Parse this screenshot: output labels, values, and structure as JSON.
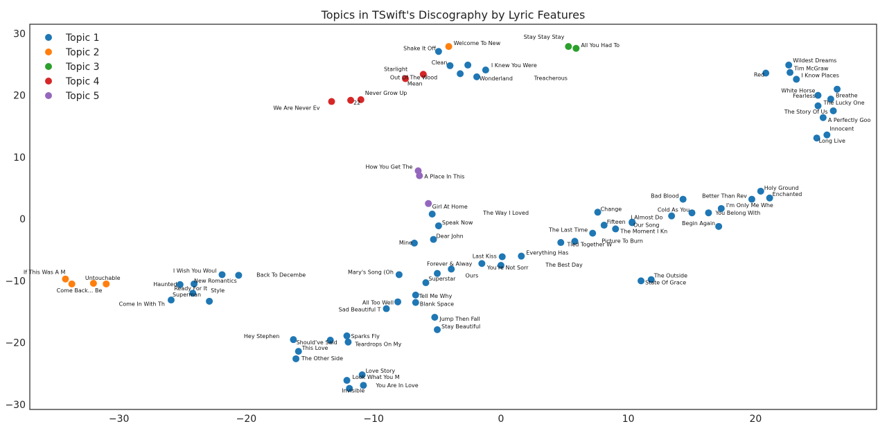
{
  "chart_data": {
    "type": "scatter",
    "title": "Topics in TSwift's Discography by Lyric Features",
    "xlim": [
      -37,
      29.5
    ],
    "ylim": [
      -30.8,
      31.5
    ],
    "xticks": [
      -30,
      -20,
      -10,
      0,
      10,
      20
    ],
    "yticks": [
      -30,
      -20,
      -10,
      0,
      10,
      20,
      30
    ],
    "xtick_labels": [
      "−30",
      "−20",
      "−10",
      "0",
      "10",
      "20"
    ],
    "ytick_labels": [
      "−30",
      "−20",
      "−10",
      "0",
      "10",
      "20",
      "30"
    ],
    "grid": false,
    "legend": "top-left",
    "series": [
      {
        "name": "Topic 1",
        "color": "#1f77b4"
      },
      {
        "name": "Topic 2",
        "color": "#ff7f0e"
      },
      {
        "name": "Topic 3",
        "color": "#2ca02c"
      },
      {
        "name": "Topic 4",
        "color": "#d62728"
      },
      {
        "name": "Topic 5",
        "color": "#9467bd"
      }
    ],
    "points": [
      {
        "label": "Shake It Off",
        "x": -4.9,
        "y": 27.1,
        "topic": 0,
        "anchor": "end",
        "dx": -4,
        "dy": -2
      },
      {
        "label": "Clean",
        "x": -4.0,
        "y": 24.8,
        "topic": 0,
        "anchor": "end",
        "dx": -4,
        "dy": -2
      },
      {
        "label": "",
        "x": -3.2,
        "y": 23.5,
        "topic": 0
      },
      {
        "label": "",
        "x": -2.6,
        "y": 24.9,
        "topic": 0
      },
      {
        "label": "I Knew You Were",
        "x": -1.2,
        "y": 24.1,
        "topic": 0,
        "anchor": "start",
        "dx": 8,
        "dy": -4
      },
      {
        "label": "Wonderland",
        "x": -1.9,
        "y": 23.0,
        "topic": 0,
        "anchor": "start",
        "dx": 4,
        "dy": 5
      },
      {
        "label": "Treacherous",
        "x": 2.6,
        "y": 22.8,
        "topic": 0,
        "textonly": true,
        "anchor": "start"
      },
      {
        "label": "Red",
        "x": 20.8,
        "y": 23.6,
        "topic": 0,
        "anchor": "end",
        "dx": -2,
        "dy": 5
      },
      {
        "label": "Wildest Dreams",
        "x": 22.6,
        "y": 24.9,
        "topic": 0,
        "anchor": "start",
        "dx": 6,
        "dy": -4
      },
      {
        "label": "Tim McGraw",
        "x": 22.7,
        "y": 23.7,
        "topic": 0,
        "anchor": "start",
        "dx": 6,
        "dy": -3
      },
      {
        "label": "I Know Places",
        "x": 23.2,
        "y": 22.6,
        "topic": 0,
        "anchor": "start",
        "dx": 7,
        "dy": -3
      },
      {
        "label": "White Horse",
        "x": 24.9,
        "y": 20.0,
        "topic": 0,
        "anchor": "end",
        "dx": -4,
        "dy": -4
      },
      {
        "label": "Breathe",
        "x": 26.4,
        "y": 21.0,
        "topic": 0,
        "anchor": "start",
        "dx": -2,
        "dy": 12
      },
      {
        "label": "Fearless",
        "x": 25.9,
        "y": 19.4,
        "topic": 0,
        "anchor": "end",
        "dx": -22,
        "dy": -2
      },
      {
        "label": "The Lucky One",
        "x": 24.9,
        "y": 18.3,
        "topic": 0,
        "anchor": "start",
        "dx": 8,
        "dy": -2
      },
      {
        "label": "The Story Of Us",
        "x": 26.1,
        "y": 17.5,
        "topic": 0,
        "anchor": "end",
        "dx": -8,
        "dy": 4
      },
      {
        "label": "A Perfectly Goo",
        "x": 25.3,
        "y": 16.4,
        "topic": 0,
        "anchor": "start",
        "dx": 7,
        "dy": 6
      },
      {
        "label": "Innocent",
        "x": 25.6,
        "y": 13.6,
        "topic": 0,
        "anchor": "start",
        "dx": 4,
        "dy": -6
      },
      {
        "label": "Long Live",
        "x": 24.8,
        "y": 13.1,
        "topic": 0,
        "anchor": "start",
        "dx": 3,
        "dy": 7
      },
      {
        "label": "Bad Blood",
        "x": 14.3,
        "y": 3.2,
        "topic": 0,
        "anchor": "end",
        "dx": -6,
        "dy": -2
      },
      {
        "label": "Holy Ground",
        "x": 20.4,
        "y": 4.5,
        "topic": 0,
        "anchor": "start",
        "dx": 5,
        "dy": -2
      },
      {
        "label": "Better Than Rev",
        "x": 19.7,
        "y": 3.2,
        "topic": 0,
        "anchor": "end",
        "dx": -7,
        "dy": -2
      },
      {
        "label": "Enchanted",
        "x": 21.1,
        "y": 3.4,
        "topic": 0,
        "anchor": "start",
        "dx": 4,
        "dy": -3
      },
      {
        "label": "I'm Only Me Whe",
        "x": 17.3,
        "y": 1.7,
        "topic": 0,
        "anchor": "start",
        "dx": 7,
        "dy": -2
      },
      {
        "label": "Cold As You",
        "x": 13.4,
        "y": 0.5,
        "topic": 0,
        "anchor": "end",
        "dx": 26,
        "dy": -6
      },
      {
        "label": "",
        "x": 15.0,
        "y": 1.0,
        "topic": 0
      },
      {
        "label": "You Belong With",
        "x": 16.3,
        "y": 1.0,
        "topic": 0,
        "anchor": "start",
        "dx": 10,
        "dy": 3
      },
      {
        "label": "Begin Again",
        "x": 17.1,
        "y": -1.2,
        "topic": 0,
        "anchor": "end",
        "dx": -5,
        "dy": -2
      },
      {
        "label": "Change",
        "x": 7.6,
        "y": 1.1,
        "topic": 0,
        "anchor": "start",
        "dx": 4,
        "dy": -2
      },
      {
        "label": "I Almost Do",
        "x": 10.3,
        "y": -0.5,
        "topic": 0,
        "anchor": "start",
        "dx": -2,
        "dy": -4
      },
      {
        "label": "Fifteen",
        "x": 8.1,
        "y": -1.0,
        "topic": 0,
        "anchor": "start",
        "dx": 4,
        "dy": -2
      },
      {
        "label": "Our Song",
        "x": 10.3,
        "y": -0.6,
        "topic": 0,
        "anchor": "start",
        "dx": 2,
        "dy": 6
      },
      {
        "label": "The Moment I Kn",
        "x": 9.0,
        "y": -1.6,
        "topic": 0,
        "anchor": "start",
        "dx": 7,
        "dy": 6
      },
      {
        "label": "The Last Time",
        "x": 7.2,
        "y": -2.3,
        "topic": 0,
        "anchor": "end",
        "dx": -7,
        "dy": -2
      },
      {
        "label": "Picture To Burn",
        "x": 7.2,
        "y": -2.3,
        "topic": 0,
        "textonly": true,
        "anchor": "start",
        "dx": 13,
        "dy": 14
      },
      {
        "label": "Tied Together W",
        "x": 5.8,
        "y": -3.6,
        "topic": 0,
        "anchor": "start",
        "dx": -11,
        "dy": 7
      },
      {
        "label": "",
        "x": 4.7,
        "y": -3.8,
        "topic": 0
      },
      {
        "label": "Everything Has",
        "x": 1.6,
        "y": -6.0,
        "topic": 0,
        "anchor": "start",
        "dx": 7,
        "dy": -2
      },
      {
        "label": "The Best Day",
        "x": 3.5,
        "y": -7.4,
        "topic": 0,
        "textonly": true,
        "anchor": "start"
      },
      {
        "label": "Last Kiss",
        "x": 0.1,
        "y": -6.1,
        "topic": 0,
        "anchor": "end",
        "dx": -8,
        "dy": 2
      },
      {
        "label": "You're Not Sorr",
        "x": 0.0,
        "y": -7.5,
        "topic": 0,
        "anchor": "start",
        "dx": -20,
        "dy": 6
      },
      {
        "label": "",
        "x": -1.5,
        "y": -7.2,
        "topic": 0
      },
      {
        "label": "The Way I Loved",
        "x": -1.4,
        "y": 1.0,
        "topic": 0,
        "textonly": true,
        "anchor": "start"
      },
      {
        "label": "Girl At Home",
        "x": -5.4,
        "y": 0.8,
        "topic": 0,
        "anchor": "start",
        "dx": 0,
        "dy": -8
      },
      {
        "label": "Speak Now",
        "x": -4.9,
        "y": -1.1,
        "topic": 0,
        "anchor": "start",
        "dx": 5,
        "dy": -2
      },
      {
        "label": "Dear John",
        "x": -5.3,
        "y": -3.3,
        "topic": 0,
        "anchor": "start",
        "dx": 4,
        "dy": -2
      },
      {
        "label": "Mine",
        "x": -6.8,
        "y": -3.9,
        "topic": 0,
        "anchor": "end",
        "dx": -3,
        "dy": 2
      },
      {
        "label": "Forever & Alway",
        "x": -5.0,
        "y": -8.8,
        "topic": 0,
        "anchor": "start",
        "dx": -15,
        "dy": -11
      },
      {
        "label": "",
        "x": -3.9,
        "y": -8.1,
        "topic": 0
      },
      {
        "label": "Ours",
        "x": -2.8,
        "y": -9.1,
        "topic": 0,
        "textonly": true,
        "anchor": "start"
      },
      {
        "label": "Mary's Song (Oh",
        "x": -8.0,
        "y": -9.0,
        "topic": 0,
        "anchor": "end",
        "dx": -8,
        "dy": -1
      },
      {
        "label": "Superstar",
        "x": -5.9,
        "y": -10.3,
        "topic": 0,
        "anchor": "start",
        "dx": 4,
        "dy": -3
      },
      {
        "label": "Tell Me Why",
        "x": -6.7,
        "y": -12.3,
        "topic": 0,
        "anchor": "start",
        "dx": 5,
        "dy": 4
      },
      {
        "label": "All Too Well",
        "x": -8.1,
        "y": -13.4,
        "topic": 0,
        "anchor": "end",
        "dx": -6,
        "dy": 4
      },
      {
        "label": "Blank Space",
        "x": -6.7,
        "y": -13.5,
        "topic": 0,
        "anchor": "start",
        "dx": 6,
        "dy": 5
      },
      {
        "label": "Sad Beautiful T",
        "x": -9.0,
        "y": -14.5,
        "topic": 0,
        "anchor": "end",
        "dx": -8,
        "dy": 4
      },
      {
        "label": "Jump Then Fall",
        "x": -5.2,
        "y": -15.9,
        "topic": 0,
        "anchor": "start",
        "dx": 7,
        "dy": 5
      },
      {
        "label": "Stay Beautiful",
        "x": -5.0,
        "y": -17.9,
        "topic": 0,
        "anchor": "start",
        "dx": 6,
        "dy": -2
      },
      {
        "label": "I Wish You Woul",
        "x": -21.9,
        "y": -9.0,
        "topic": 0,
        "anchor": "end",
        "dx": -8,
        "dy": -3
      },
      {
        "label": "",
        "x": -20.6,
        "y": -9.1,
        "topic": 0
      },
      {
        "label": "Back To Decembe",
        "x": -19.2,
        "y": -9.0,
        "topic": 0,
        "textonly": true,
        "anchor": "start"
      },
      {
        "label": "Haunted",
        "x": -27.3,
        "y": -10.5,
        "topic": 0,
        "textonly": true,
        "anchor": "start"
      },
      {
        "label": "New Romantics",
        "x": -24.1,
        "y": -10.5,
        "topic": 0,
        "anchor": "start",
        "dx": 0,
        "dy": -2
      },
      {
        "label": "",
        "x": -25.2,
        "y": -10.6,
        "topic": 0
      },
      {
        "label": "Ready For It",
        "x": -24.2,
        "y": -12.0,
        "topic": 0,
        "anchor": "start",
        "dx": -27,
        "dy": -4
      },
      {
        "label": "Superman",
        "x": -25.9,
        "y": -13.1,
        "topic": 0,
        "anchor": "start",
        "dx": 2,
        "dy": -5
      },
      {
        "label": "Style",
        "x": -22.9,
        "y": -13.3,
        "topic": 0,
        "anchor": "start",
        "dx": 2,
        "dy": -13
      },
      {
        "label": "Come In With Th",
        "x": -30.0,
        "y": -13.7,
        "topic": 0,
        "textonly": true,
        "anchor": "start"
      },
      {
        "label": "Hey Stephen",
        "x": -16.3,
        "y": -19.5,
        "topic": 0,
        "anchor": "end",
        "dx": -20,
        "dy": -2
      },
      {
        "label": "Should've Said",
        "x": -13.4,
        "y": -19.6,
        "topic": 0,
        "anchor": "end",
        "dx": 10,
        "dy": 6
      },
      {
        "label": "Sparks Fly",
        "x": -12.1,
        "y": -18.9,
        "topic": 0,
        "anchor": "start",
        "dx": 6,
        "dy": 3
      },
      {
        "label": "Teardrops On My",
        "x": -12.0,
        "y": -19.9,
        "topic": 0,
        "anchor": "start",
        "dx": 10,
        "dy": 6
      },
      {
        "label": "This Love",
        "x": -15.9,
        "y": -21.4,
        "topic": 0,
        "anchor": "start",
        "dx": 5,
        "dy": -2
      },
      {
        "label": "The Other Side",
        "x": -16.1,
        "y": -22.6,
        "topic": 0,
        "anchor": "start",
        "dx": 8,
        "dy": 2
      },
      {
        "label": "Love Story",
        "x": -10.9,
        "y": -25.2,
        "topic": 0,
        "anchor": "start",
        "dx": 5,
        "dy": -3
      },
      {
        "label": "Look What You M",
        "x": -12.1,
        "y": -26.1,
        "topic": 0,
        "anchor": "start",
        "dx": 8,
        "dy": -2
      },
      {
        "label": "You Are In Love",
        "x": -10.8,
        "y": -26.9,
        "topic": 0,
        "anchor": "start",
        "dx": 18,
        "dy": 3
      },
      {
        "label": "Invisible",
        "x": -11.9,
        "y": -27.4,
        "topic": 0,
        "anchor": "start",
        "dx": -11,
        "dy": 6
      },
      {
        "label": "The Outside",
        "x": 11.8,
        "y": -9.8,
        "topic": 0,
        "anchor": "start",
        "dx": 4,
        "dy": -3
      },
      {
        "label": "State Of Grace",
        "x": 11.0,
        "y": -10.0,
        "topic": 0,
        "anchor": "start",
        "dx": 6,
        "dy": 5
      },
      {
        "label": "Welcome To New",
        "x": -4.1,
        "y": 27.9,
        "topic": 1,
        "anchor": "start",
        "dx": 7,
        "dy": -2
      },
      {
        "label": "If This Was A M",
        "x": -34.2,
        "y": -9.7,
        "topic": 1,
        "anchor": "end",
        "dx": 0,
        "dy": -7
      },
      {
        "label": "Come Back... Be",
        "x": -33.7,
        "y": -10.5,
        "topic": 1,
        "anchor": "start",
        "dx": -22,
        "dy": 12
      },
      {
        "label": "Untouchable",
        "x": -32.0,
        "y": -10.4,
        "topic": 1,
        "anchor": "start",
        "dx": -12,
        "dy": -5
      },
      {
        "label": "",
        "x": -31.0,
        "y": -10.5,
        "topic": 1
      },
      {
        "label": "Stay Stay Stay",
        "x": 5.3,
        "y": 27.9,
        "topic": 2,
        "anchor": "end",
        "dx": -6,
        "dy": -11
      },
      {
        "label": "All You Had To",
        "x": 5.9,
        "y": 27.6,
        "topic": 2,
        "anchor": "start",
        "dx": 7,
        "dy": -2
      },
      {
        "label": "Starlight",
        "x": -7.5,
        "y": 22.7,
        "topic": 3,
        "anchor": "end",
        "dx": 3,
        "dy": -11
      },
      {
        "label": "Out Of The Wood",
        "x": -6.1,
        "y": 23.4,
        "topic": 3,
        "anchor": "start",
        "dx": -48,
        "dy": 7
      },
      {
        "label": "Mean",
        "x": -6.1,
        "y": 23.4,
        "topic": 3,
        "textonly": true,
        "anchor": "start",
        "dx": -23,
        "dy": 16
      },
      {
        "label": "Never Grow Up",
        "x": -11.0,
        "y": 19.3,
        "topic": 3,
        "anchor": "start",
        "dx": 6,
        "dy": -7
      },
      {
        "label": "22",
        "x": -11.8,
        "y": 19.2,
        "topic": 3,
        "anchor": "start",
        "dx": 4,
        "dy": 6
      },
      {
        "label": "We Are Never Ev",
        "x": -13.3,
        "y": 19.0,
        "topic": 3,
        "anchor": "end",
        "dx": -17,
        "dy": 12
      },
      {
        "label": "How You Get The",
        "x": -6.5,
        "y": 7.8,
        "topic": 4,
        "anchor": "end",
        "dx": -8,
        "dy": -3
      },
      {
        "label": "A Place In This",
        "x": -6.4,
        "y": 7.0,
        "topic": 4,
        "anchor": "start",
        "dx": 7,
        "dy": 4
      },
      {
        "label": "",
        "x": -5.7,
        "y": 2.5,
        "topic": 4
      }
    ]
  }
}
